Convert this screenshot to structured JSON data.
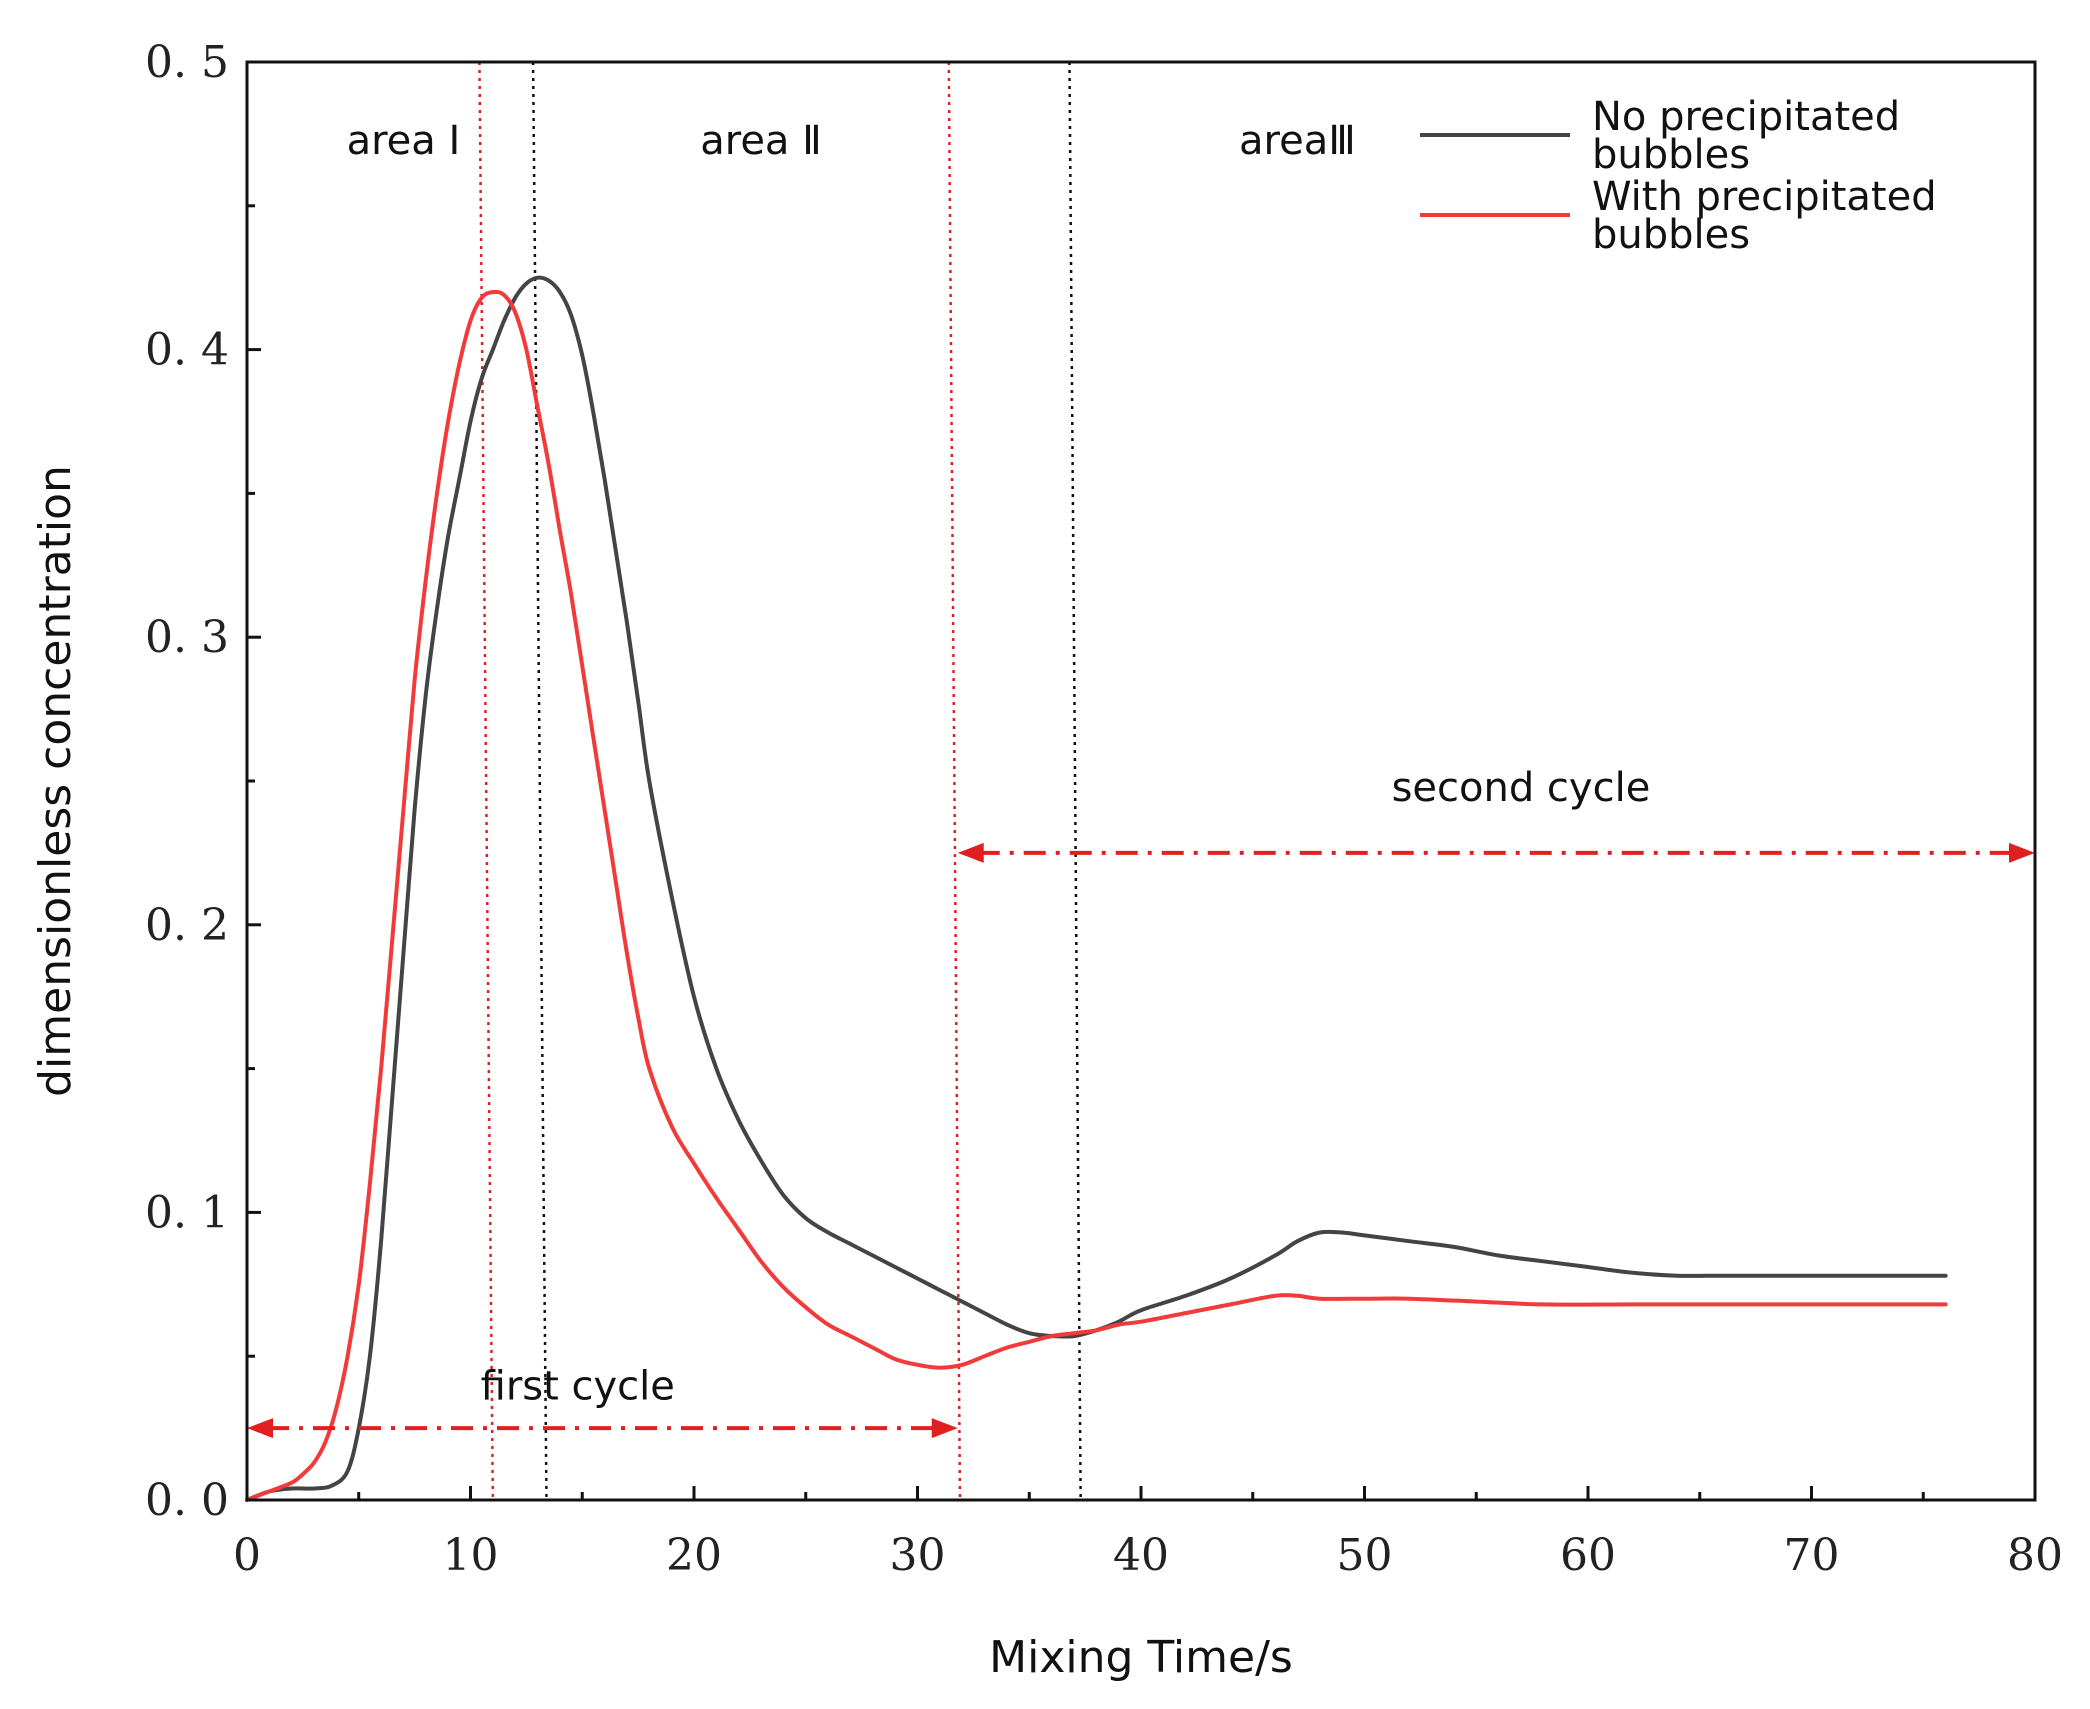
{
  "chart_data": {
    "type": "line",
    "title": "",
    "xlabel": "Mixing Time/s",
    "ylabel": "dimensionless concentration",
    "xlim": [
      0,
      80
    ],
    "ylim": [
      0,
      0.5
    ],
    "xticks": [
      0,
      10,
      20,
      30,
      40,
      50,
      60,
      70,
      80
    ],
    "xtick_labels": [
      "0",
      "10",
      "20",
      "30",
      "40",
      "50",
      "60",
      "70",
      "80"
    ],
    "yticks": [
      0,
      0.1,
      0.2,
      0.3,
      0.4,
      0.5
    ],
    "ytick_labels": [
      "0. 0",
      "0. 1",
      "0. 2",
      "0. 3",
      "0. 4",
      "0. 5"
    ],
    "grid": false,
    "legend_position": "top-right",
    "series": [
      {
        "name": "No precipitated bubbles",
        "legend_lines": [
          "No precipitated",
          "bubbles"
        ],
        "color": "#444444",
        "points": [
          [
            0,
            0
          ],
          [
            1,
            0.003
          ],
          [
            2,
            0.004
          ],
          [
            3,
            0.004
          ],
          [
            3.8,
            0.005
          ],
          [
            4.5,
            0.01
          ],
          [
            5,
            0.025
          ],
          [
            5.5,
            0.05
          ],
          [
            6,
            0.09
          ],
          [
            6.5,
            0.14
          ],
          [
            7,
            0.19
          ],
          [
            7.5,
            0.24
          ],
          [
            8,
            0.28
          ],
          [
            8.5,
            0.31
          ],
          [
            9,
            0.335
          ],
          [
            9.5,
            0.355
          ],
          [
            10,
            0.375
          ],
          [
            10.5,
            0.39
          ],
          [
            11,
            0.4
          ],
          [
            11.5,
            0.41
          ],
          [
            12,
            0.418
          ],
          [
            12.5,
            0.423
          ],
          [
            13,
            0.425
          ],
          [
            13.5,
            0.424
          ],
          [
            14,
            0.42
          ],
          [
            14.5,
            0.412
          ],
          [
            15,
            0.398
          ],
          [
            15.5,
            0.378
          ],
          [
            16,
            0.355
          ],
          [
            16.5,
            0.33
          ],
          [
            17,
            0.305
          ],
          [
            17.5,
            0.278
          ],
          [
            18,
            0.25
          ],
          [
            19,
            0.21
          ],
          [
            20,
            0.175
          ],
          [
            21,
            0.15
          ],
          [
            22,
            0.132
          ],
          [
            23,
            0.118
          ],
          [
            24,
            0.106
          ],
          [
            25,
            0.098
          ],
          [
            26,
            0.093
          ],
          [
            27,
            0.089
          ],
          [
            28,
            0.085
          ],
          [
            29,
            0.081
          ],
          [
            30,
            0.077
          ],
          [
            31,
            0.073
          ],
          [
            32,
            0.069
          ],
          [
            33,
            0.065
          ],
          [
            34,
            0.061
          ],
          [
            35,
            0.058
          ],
          [
            36,
            0.057
          ],
          [
            37,
            0.057
          ],
          [
            38,
            0.059
          ],
          [
            39,
            0.062
          ],
          [
            40,
            0.066
          ],
          [
            42,
            0.071
          ],
          [
            44,
            0.077
          ],
          [
            46,
            0.085
          ],
          [
            47,
            0.09
          ],
          [
            48,
            0.093
          ],
          [
            49,
            0.093
          ],
          [
            50,
            0.092
          ],
          [
            52,
            0.09
          ],
          [
            54,
            0.088
          ],
          [
            56,
            0.085
          ],
          [
            58,
            0.083
          ],
          [
            60,
            0.081
          ],
          [
            62,
            0.079
          ],
          [
            64,
            0.078
          ],
          [
            66,
            0.078
          ],
          [
            68,
            0.078
          ],
          [
            70,
            0.078
          ],
          [
            72,
            0.078
          ],
          [
            74,
            0.078
          ],
          [
            76,
            0.078
          ]
        ]
      },
      {
        "name": "With precipitated bubbles",
        "legend_lines": [
          "With precipitated",
          "bubbles"
        ],
        "color": "#f23a3a",
        "points": [
          [
            0,
            0
          ],
          [
            1,
            0.003
          ],
          [
            2,
            0.006
          ],
          [
            2.5,
            0.009
          ],
          [
            3,
            0.013
          ],
          [
            3.5,
            0.02
          ],
          [
            4,
            0.032
          ],
          [
            4.5,
            0.05
          ],
          [
            5,
            0.075
          ],
          [
            5.5,
            0.11
          ],
          [
            6,
            0.15
          ],
          [
            6.5,
            0.195
          ],
          [
            7,
            0.24
          ],
          [
            7.5,
            0.285
          ],
          [
            8,
            0.32
          ],
          [
            8.5,
            0.35
          ],
          [
            9,
            0.375
          ],
          [
            9.5,
            0.395
          ],
          [
            10,
            0.41
          ],
          [
            10.5,
            0.418
          ],
          [
            11,
            0.42
          ],
          [
            11.5,
            0.419
          ],
          [
            12,
            0.413
          ],
          [
            12.5,
            0.4
          ],
          [
            13,
            0.38
          ],
          [
            13.5,
            0.36
          ],
          [
            14,
            0.337
          ],
          [
            14.5,
            0.315
          ],
          [
            15,
            0.29
          ],
          [
            15.5,
            0.265
          ],
          [
            16,
            0.24
          ],
          [
            16.5,
            0.215
          ],
          [
            17,
            0.19
          ],
          [
            17.5,
            0.168
          ],
          [
            18,
            0.15
          ],
          [
            19,
            0.13
          ],
          [
            20,
            0.117
          ],
          [
            21,
            0.105
          ],
          [
            22,
            0.094
          ],
          [
            23,
            0.083
          ],
          [
            24,
            0.074
          ],
          [
            25,
            0.067
          ],
          [
            26,
            0.061
          ],
          [
            27,
            0.057
          ],
          [
            28,
            0.053
          ],
          [
            29,
            0.049
          ],
          [
            30,
            0.047
          ],
          [
            31,
            0.046
          ],
          [
            32,
            0.047
          ],
          [
            33,
            0.05
          ],
          [
            34,
            0.053
          ],
          [
            35,
            0.055
          ],
          [
            36,
            0.057
          ],
          [
            37,
            0.058
          ],
          [
            38,
            0.059
          ],
          [
            39,
            0.061
          ],
          [
            40,
            0.062
          ],
          [
            42,
            0.065
          ],
          [
            44,
            0.068
          ],
          [
            46,
            0.071
          ],
          [
            47,
            0.071
          ],
          [
            48,
            0.07
          ],
          [
            50,
            0.07
          ],
          [
            52,
            0.07
          ],
          [
            55,
            0.069
          ],
          [
            58,
            0.068
          ],
          [
            62,
            0.068
          ],
          [
            66,
            0.068
          ],
          [
            70,
            0.068
          ],
          [
            76,
            0.068
          ]
        ]
      }
    ],
    "vertical_lines": [
      {
        "x": 10.4,
        "x_bottom": 11,
        "color": "#e02020"
      },
      {
        "x": 12.8,
        "x_bottom": 13.4,
        "color": "#111111"
      },
      {
        "x": 31.4,
        "x_bottom": 31.9,
        "color": "#e02020"
      },
      {
        "x": 36.8,
        "x_bottom": 37.3,
        "color": "#111111"
      }
    ],
    "annotations": [
      {
        "text": "area Ⅰ",
        "x": 7,
        "y": 0.468
      },
      {
        "text": "area Ⅱ",
        "x": 23,
        "y": 0.468
      },
      {
        "text": "areaⅢ",
        "x": 47,
        "y": 0.468
      },
      {
        "text": "second cycle",
        "x": 57,
        "y": 0.243
      },
      {
        "text": "first cycle",
        "x": 14.8,
        "y": 0.035
      }
    ],
    "arrows": [
      {
        "label": "first cycle",
        "x_start": 0,
        "x_end": 31.8,
        "y": 0.025,
        "color": "#e02020"
      },
      {
        "label": "second cycle",
        "x_start": 31.8,
        "x_end": 80,
        "y": 0.225,
        "color": "#e02020"
      }
    ]
  }
}
